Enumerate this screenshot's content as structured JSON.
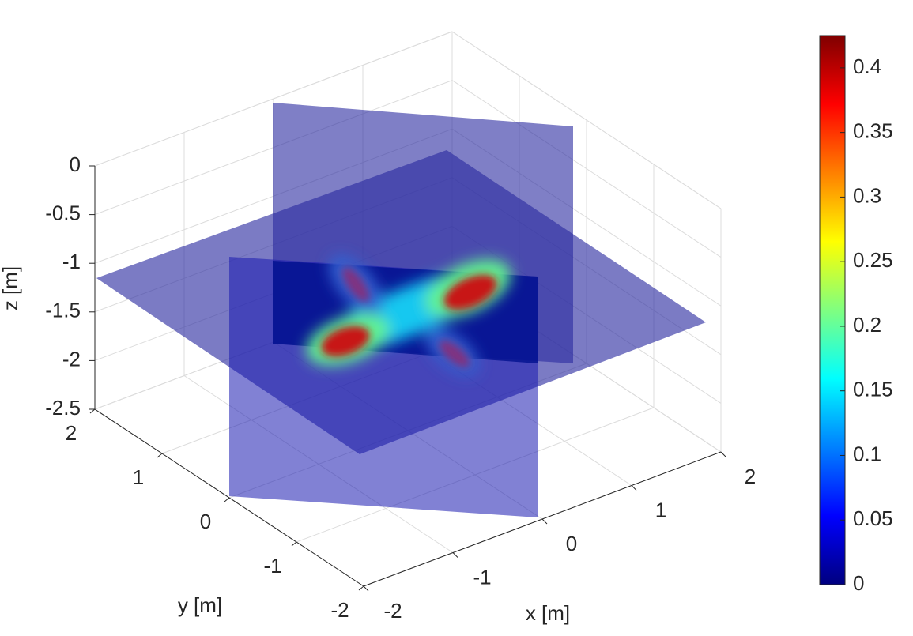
{
  "chart_data": {
    "type": "slice3d",
    "xlabel": "x [m]",
    "ylabel": "y [m]",
    "zlabel": "z [m]",
    "xlim": [
      -2,
      2
    ],
    "ylim": [
      -2,
      2
    ],
    "zlim": [
      -2.5,
      0
    ],
    "xticks": [
      -2,
      -1,
      0,
      1,
      2
    ],
    "yticks": [
      -2,
      -1,
      0,
      1,
      2
    ],
    "zticks": [
      -2.5,
      -2,
      -1.5,
      -1,
      -0.5,
      0
    ],
    "colormap": "jet",
    "clim": [
      0,
      0.425
    ],
    "cticks": [
      0,
      0.05,
      0.1,
      0.15,
      0.2,
      0.25,
      0.3,
      0.35,
      0.4
    ],
    "grid": true
  }
}
